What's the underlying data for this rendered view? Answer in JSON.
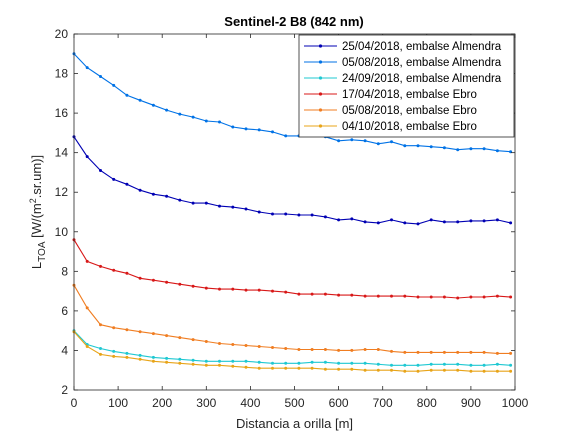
{
  "chart_data": {
    "type": "line",
    "title": "Sentinel-2 B8 (842 nm)",
    "xlabel": "Distancia a orilla [m]",
    "ylabel": {
      "prefix": "L",
      "subscript": "TOA",
      "mid": " [W/(m",
      "superscript": "2",
      "suffix": ".sr.um)]"
    },
    "xlim": [
      0,
      1000
    ],
    "ylim": [
      2,
      20
    ],
    "xticks": [
      0,
      100,
      200,
      300,
      400,
      500,
      600,
      700,
      800,
      900,
      1000
    ],
    "yticks": [
      2,
      4,
      6,
      8,
      10,
      12,
      14,
      16,
      18,
      20
    ],
    "grid": false,
    "legend_position": "top-right",
    "x": [
      0,
      30,
      60,
      90,
      120,
      150,
      180,
      210,
      240,
      270,
      300,
      330,
      360,
      390,
      420,
      450,
      480,
      510,
      540,
      570,
      600,
      630,
      660,
      690,
      720,
      750,
      780,
      810,
      840,
      870,
      900,
      930,
      960,
      990
    ],
    "series": [
      {
        "name": "25/04/2018, embalse Almendra",
        "color": "#0000B3",
        "values": [
          14.8,
          13.8,
          13.1,
          12.65,
          12.4,
          12.1,
          11.9,
          11.8,
          11.6,
          11.45,
          11.45,
          11.3,
          11.25,
          11.15,
          11.0,
          10.9,
          10.9,
          10.85,
          10.85,
          10.75,
          10.6,
          10.65,
          10.5,
          10.45,
          10.6,
          10.45,
          10.4,
          10.6,
          10.5,
          10.5,
          10.55,
          10.55,
          10.6,
          10.45
        ]
      },
      {
        "name": "05/08/2018, embalse Almendra",
        "color": "#0072E6",
        "values": [
          19.0,
          18.3,
          17.85,
          17.4,
          16.9,
          16.65,
          16.4,
          16.15,
          15.95,
          15.8,
          15.6,
          15.55,
          15.3,
          15.2,
          15.15,
          15.05,
          14.85,
          14.85,
          14.9,
          14.8,
          14.6,
          14.65,
          14.6,
          14.45,
          14.55,
          14.35,
          14.35,
          14.3,
          14.25,
          14.15,
          14.2,
          14.2,
          14.1,
          14.05
        ]
      },
      {
        "name": "24/09/2018, embalse Almendra",
        "color": "#1FC8D2",
        "values": [
          5.0,
          4.3,
          4.1,
          3.95,
          3.85,
          3.75,
          3.65,
          3.6,
          3.55,
          3.5,
          3.45,
          3.45,
          3.45,
          3.45,
          3.4,
          3.35,
          3.35,
          3.35,
          3.4,
          3.4,
          3.35,
          3.35,
          3.35,
          3.3,
          3.25,
          3.25,
          3.25,
          3.3,
          3.3,
          3.3,
          3.25,
          3.25,
          3.3,
          3.25
        ]
      },
      {
        "name": "17/04/2018, embalse Ebro",
        "color": "#D81818",
        "values": [
          9.6,
          8.5,
          8.25,
          8.05,
          7.9,
          7.65,
          7.55,
          7.45,
          7.35,
          7.25,
          7.15,
          7.1,
          7.1,
          7.05,
          7.05,
          7.0,
          6.95,
          6.85,
          6.85,
          6.85,
          6.8,
          6.8,
          6.75,
          6.75,
          6.75,
          6.75,
          6.7,
          6.7,
          6.7,
          6.65,
          6.7,
          6.7,
          6.75,
          6.7
        ]
      },
      {
        "name": "05/08/2018, embalse Ebro",
        "color": "#F07D21",
        "values": [
          7.3,
          6.15,
          5.3,
          5.15,
          5.05,
          4.95,
          4.85,
          4.75,
          4.65,
          4.55,
          4.45,
          4.35,
          4.3,
          4.25,
          4.2,
          4.15,
          4.1,
          4.05,
          4.05,
          4.05,
          4.0,
          4.0,
          4.05,
          4.05,
          3.95,
          3.9,
          3.9,
          3.9,
          3.9,
          3.9,
          3.9,
          3.9,
          3.85,
          3.85
        ]
      },
      {
        "name": "04/10/2018, embalse Ebro",
        "color": "#E8A418",
        "values": [
          4.95,
          4.2,
          3.8,
          3.7,
          3.65,
          3.55,
          3.45,
          3.4,
          3.35,
          3.3,
          3.25,
          3.25,
          3.2,
          3.15,
          3.1,
          3.1,
          3.1,
          3.1,
          3.1,
          3.05,
          3.05,
          3.05,
          3.0,
          3.0,
          3.0,
          2.95,
          2.95,
          3.0,
          3.0,
          3.0,
          2.95,
          2.95,
          2.95,
          2.95
        ]
      }
    ]
  }
}
